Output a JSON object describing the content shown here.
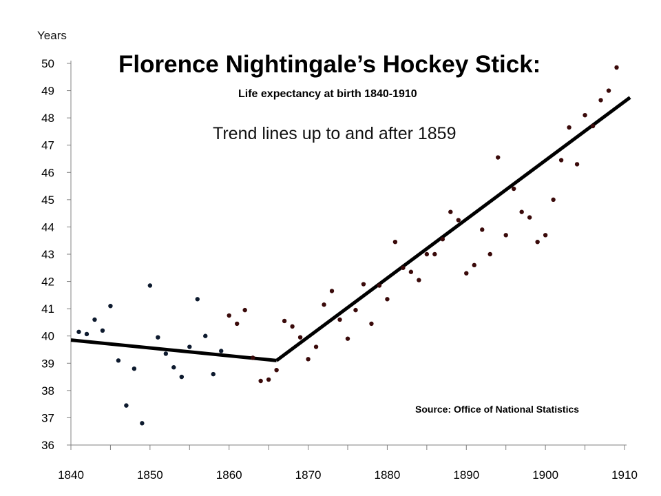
{
  "chart_data": {
    "type": "scatter",
    "title": "Florence Nightingale’s Hockey Stick:",
    "subtitle": "Life expectancy at birth 1840-1910",
    "annotation": "Trend lines up to and after 1859",
    "source": "Source: Office of National Statistics",
    "xlabel": "",
    "ylabel": "Years",
    "xlim": [
      1840,
      1910
    ],
    "ylim": [
      36,
      50
    ],
    "x_ticks": [
      "1840",
      "1850",
      "1860",
      "1870",
      "1880",
      "1890",
      "1900",
      "1910"
    ],
    "y_ticks": [
      "36",
      "37",
      "38",
      "39",
      "40",
      "41",
      "42",
      "43",
      "44",
      "45",
      "46",
      "47",
      "48",
      "49",
      "50"
    ],
    "grid": false,
    "colors": {
      "early": "#0d1a2e",
      "late": "#3a0a0a",
      "trend": "#000000"
    },
    "series": [
      {
        "points": [
          [
            1841,
            40.15
          ],
          [
            1842,
            40.07
          ],
          [
            1843,
            40.6
          ],
          [
            1844,
            40.2
          ],
          [
            1845,
            41.1
          ],
          [
            1846,
            39.1
          ],
          [
            1847,
            37.45
          ],
          [
            1848,
            38.8
          ],
          [
            1849,
            36.8
          ],
          [
            1850,
            41.85
          ],
          [
            1851,
            39.95
          ],
          [
            1852,
            39.35
          ],
          [
            1853,
            38.85
          ],
          [
            1854,
            38.5
          ],
          [
            1855,
            39.6
          ],
          [
            1856,
            41.35
          ],
          [
            1857,
            40.0
          ],
          [
            1858,
            38.6
          ],
          [
            1859,
            39.45
          ]
        ]
      },
      {
        "points": [
          [
            1860,
            40.75
          ],
          [
            1861,
            40.45
          ],
          [
            1862,
            40.95
          ],
          [
            1863,
            39.2
          ],
          [
            1864,
            38.35
          ],
          [
            1865,
            38.4
          ],
          [
            1866,
            38.75
          ],
          [
            1867,
            40.55
          ],
          [
            1868,
            40.35
          ],
          [
            1869,
            39.95
          ],
          [
            1870,
            39.15
          ],
          [
            1871,
            39.6
          ],
          [
            1872,
            41.15
          ],
          [
            1873,
            41.65
          ],
          [
            1874,
            40.6
          ],
          [
            1875,
            39.9
          ],
          [
            1876,
            40.95
          ],
          [
            1877,
            41.9
          ],
          [
            1878,
            40.45
          ],
          [
            1879,
            41.85
          ],
          [
            1880,
            41.35
          ],
          [
            1881,
            43.45
          ],
          [
            1882,
            42.5
          ],
          [
            1883,
            42.35
          ],
          [
            1884,
            42.05
          ],
          [
            1885,
            43.0
          ],
          [
            1886,
            43.0
          ],
          [
            1887,
            43.55
          ],
          [
            1888,
            44.55
          ],
          [
            1889,
            44.25
          ],
          [
            1890,
            42.3
          ],
          [
            1891,
            42.6
          ],
          [
            1892,
            43.9
          ],
          [
            1893,
            43.0
          ],
          [
            1894,
            46.55
          ],
          [
            1895,
            43.7
          ],
          [
            1896,
            45.4
          ],
          [
            1897,
            44.55
          ],
          [
            1898,
            44.35
          ],
          [
            1899,
            43.45
          ],
          [
            1900,
            43.7
          ],
          [
            1901,
            45.0
          ],
          [
            1902,
            46.45
          ],
          [
            1903,
            47.65
          ],
          [
            1904,
            46.3
          ],
          [
            1905,
            48.1
          ],
          [
            1906,
            47.7
          ],
          [
            1907,
            48.65
          ],
          [
            1908,
            49.0
          ],
          [
            1909,
            49.85
          ]
        ]
      }
    ],
    "trend_lines": [
      {
        "points": [
          [
            1840,
            39.85
          ],
          [
            1866,
            39.1
          ]
        ]
      },
      {
        "points": [
          [
            1866,
            39.1
          ],
          [
            1910.7,
            48.75
          ]
        ]
      }
    ]
  }
}
